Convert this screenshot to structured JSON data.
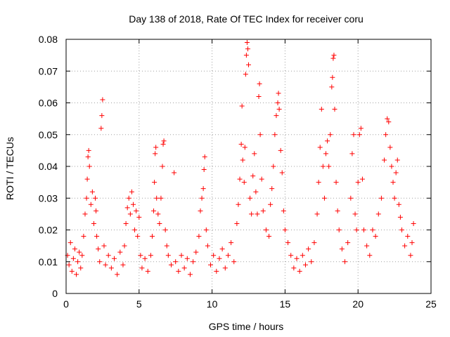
{
  "chart_data": {
    "type": "scatter",
    "title": "Day 138 of 2018, Rate Of TEC Index for receiver coru",
    "xlabel": "GPS time / hours",
    "ylabel": "ROTI / TECUs",
    "xlim": [
      0,
      25
    ],
    "ylim": [
      0,
      0.08
    ],
    "xticks": [
      0,
      5,
      10,
      15,
      20,
      25
    ],
    "xtick_labels": [
      "0",
      "5",
      "10",
      "15",
      "20",
      "25"
    ],
    "yticks": [
      0,
      0.01,
      0.02,
      0.03,
      0.04,
      0.05,
      0.06,
      0.07,
      0.08
    ],
    "ytick_labels": [
      "0",
      "0.01",
      "0.02",
      "0.03",
      "0.04",
      "0.05",
      "0.06",
      "0.07",
      "0.08"
    ],
    "grid": true,
    "marker": "+",
    "color": "#ff0000",
    "series": [
      {
        "name": "ROTI",
        "points": [
          [
            0.1,
            0.012
          ],
          [
            0.2,
            0.009
          ],
          [
            0.3,
            0.016
          ],
          [
            0.4,
            0.007
          ],
          [
            0.5,
            0.011
          ],
          [
            0.6,
            0.014
          ],
          [
            0.7,
            0.006
          ],
          [
            0.8,
            0.01
          ],
          [
            0.9,
            0.013
          ],
          [
            1.0,
            0.008
          ],
          [
            1.1,
            0.012
          ],
          [
            1.2,
            0.018
          ],
          [
            1.3,
            0.025
          ],
          [
            1.4,
            0.03
          ],
          [
            1.45,
            0.036
          ],
          [
            1.5,
            0.043
          ],
          [
            1.55,
            0.045
          ],
          [
            1.6,
            0.04
          ],
          [
            1.7,
            0.028
          ],
          [
            1.8,
            0.032
          ],
          [
            1.9,
            0.022
          ],
          [
            2.0,
            0.03
          ],
          [
            2.05,
            0.026
          ],
          [
            2.1,
            0.018
          ],
          [
            2.2,
            0.014
          ],
          [
            2.3,
            0.01
          ],
          [
            2.4,
            0.052
          ],
          [
            2.45,
            0.056
          ],
          [
            2.5,
            0.061
          ],
          [
            2.6,
            0.015
          ],
          [
            2.7,
            0.009
          ],
          [
            2.9,
            0.012
          ],
          [
            3.1,
            0.008
          ],
          [
            3.3,
            0.011
          ],
          [
            3.5,
            0.006
          ],
          [
            3.7,
            0.013
          ],
          [
            3.9,
            0.009
          ],
          [
            4.0,
            0.015
          ],
          [
            4.1,
            0.022
          ],
          [
            4.2,
            0.027
          ],
          [
            4.3,
            0.03
          ],
          [
            4.4,
            0.025
          ],
          [
            4.5,
            0.032
          ],
          [
            4.6,
            0.028
          ],
          [
            4.7,
            0.02
          ],
          [
            4.8,
            0.026
          ],
          [
            4.9,
            0.018
          ],
          [
            5.0,
            0.024
          ],
          [
            5.1,
            0.012
          ],
          [
            5.2,
            0.008
          ],
          [
            5.4,
            0.011
          ],
          [
            5.6,
            0.007
          ],
          [
            5.8,
            0.012
          ],
          [
            5.9,
            0.018
          ],
          [
            6.0,
            0.026
          ],
          [
            6.05,
            0.035
          ],
          [
            6.1,
            0.044
          ],
          [
            6.15,
            0.046
          ],
          [
            6.2,
            0.03
          ],
          [
            6.3,
            0.025
          ],
          [
            6.4,
            0.022
          ],
          [
            6.5,
            0.03
          ],
          [
            6.6,
            0.04
          ],
          [
            6.65,
            0.047
          ],
          [
            6.7,
            0.048
          ],
          [
            6.8,
            0.02
          ],
          [
            6.9,
            0.015
          ],
          [
            7.0,
            0.012
          ],
          [
            7.2,
            0.009
          ],
          [
            7.4,
            0.038
          ],
          [
            7.5,
            0.01
          ],
          [
            7.7,
            0.007
          ],
          [
            7.9,
            0.012
          ],
          [
            8.1,
            0.008
          ],
          [
            8.3,
            0.011
          ],
          [
            8.5,
            0.006
          ],
          [
            8.7,
            0.01
          ],
          [
            8.9,
            0.013
          ],
          [
            9.1,
            0.018
          ],
          [
            9.2,
            0.026
          ],
          [
            9.3,
            0.03
          ],
          [
            9.4,
            0.033
          ],
          [
            9.45,
            0.039
          ],
          [
            9.5,
            0.043
          ],
          [
            9.6,
            0.02
          ],
          [
            9.7,
            0.015
          ],
          [
            9.9,
            0.009
          ],
          [
            10.1,
            0.012
          ],
          [
            10.3,
            0.007
          ],
          [
            10.5,
            0.011
          ],
          [
            10.7,
            0.014
          ],
          [
            10.9,
            0.008
          ],
          [
            11.1,
            0.012
          ],
          [
            11.3,
            0.016
          ],
          [
            11.5,
            0.01
          ],
          [
            11.7,
            0.022
          ],
          [
            11.8,
            0.028
          ],
          [
            11.9,
            0.036
          ],
          [
            12.0,
            0.047
          ],
          [
            12.05,
            0.059
          ],
          [
            12.1,
            0.042
          ],
          [
            12.2,
            0.035
          ],
          [
            12.25,
            0.046
          ],
          [
            12.3,
            0.069
          ],
          [
            12.35,
            0.075
          ],
          [
            12.4,
            0.079
          ],
          [
            12.45,
            0.077
          ],
          [
            12.5,
            0.072
          ],
          [
            12.6,
            0.03
          ],
          [
            12.7,
            0.025
          ],
          [
            12.8,
            0.037
          ],
          [
            12.9,
            0.044
          ],
          [
            13.0,
            0.032
          ],
          [
            13.1,
            0.025
          ],
          [
            13.2,
            0.062
          ],
          [
            13.25,
            0.066
          ],
          [
            13.3,
            0.05
          ],
          [
            13.4,
            0.036
          ],
          [
            13.5,
            0.026
          ],
          [
            13.7,
            0.02
          ],
          [
            13.9,
            0.018
          ],
          [
            14.0,
            0.028
          ],
          [
            14.1,
            0.033
          ],
          [
            14.2,
            0.04
          ],
          [
            14.3,
            0.05
          ],
          [
            14.4,
            0.056
          ],
          [
            14.5,
            0.06
          ],
          [
            14.55,
            0.063
          ],
          [
            14.6,
            0.058
          ],
          [
            14.7,
            0.045
          ],
          [
            14.8,
            0.038
          ],
          [
            14.9,
            0.026
          ],
          [
            15.0,
            0.02
          ],
          [
            15.2,
            0.016
          ],
          [
            15.4,
            0.012
          ],
          [
            15.6,
            0.008
          ],
          [
            15.8,
            0.011
          ],
          [
            16.0,
            0.007
          ],
          [
            16.2,
            0.012
          ],
          [
            16.4,
            0.009
          ],
          [
            16.6,
            0.014
          ],
          [
            16.8,
            0.01
          ],
          [
            17.0,
            0.016
          ],
          [
            17.2,
            0.025
          ],
          [
            17.3,
            0.035
          ],
          [
            17.4,
            0.046
          ],
          [
            17.5,
            0.058
          ],
          [
            17.6,
            0.04
          ],
          [
            17.7,
            0.03
          ],
          [
            17.8,
            0.044
          ],
          [
            17.9,
            0.048
          ],
          [
            18.0,
            0.04
          ],
          [
            18.1,
            0.05
          ],
          [
            18.2,
            0.065
          ],
          [
            18.25,
            0.068
          ],
          [
            18.3,
            0.074
          ],
          [
            18.35,
            0.075
          ],
          [
            18.4,
            0.058
          ],
          [
            18.5,
            0.035
          ],
          [
            18.6,
            0.026
          ],
          [
            18.7,
            0.02
          ],
          [
            18.9,
            0.014
          ],
          [
            19.1,
            0.01
          ],
          [
            19.3,
            0.016
          ],
          [
            19.5,
            0.03
          ],
          [
            19.6,
            0.044
          ],
          [
            19.7,
            0.05
          ],
          [
            19.8,
            0.025
          ],
          [
            19.9,
            0.02
          ],
          [
            20.0,
            0.035
          ],
          [
            20.1,
            0.05
          ],
          [
            20.2,
            0.052
          ],
          [
            20.3,
            0.036
          ],
          [
            20.4,
            0.02
          ],
          [
            20.6,
            0.015
          ],
          [
            20.8,
            0.012
          ],
          [
            21.0,
            0.02
          ],
          [
            21.2,
            0.018
          ],
          [
            21.4,
            0.025
          ],
          [
            21.6,
            0.03
          ],
          [
            21.8,
            0.042
          ],
          [
            21.9,
            0.05
          ],
          [
            22.0,
            0.055
          ],
          [
            22.1,
            0.054
          ],
          [
            22.2,
            0.046
          ],
          [
            22.3,
            0.04
          ],
          [
            22.4,
            0.035
          ],
          [
            22.5,
            0.03
          ],
          [
            22.6,
            0.038
          ],
          [
            22.7,
            0.042
          ],
          [
            22.8,
            0.028
          ],
          [
            22.9,
            0.024
          ],
          [
            23.0,
            0.02
          ],
          [
            23.2,
            0.015
          ],
          [
            23.4,
            0.018
          ],
          [
            23.6,
            0.012
          ],
          [
            23.7,
            0.016
          ],
          [
            23.8,
            0.022
          ]
        ]
      }
    ]
  }
}
